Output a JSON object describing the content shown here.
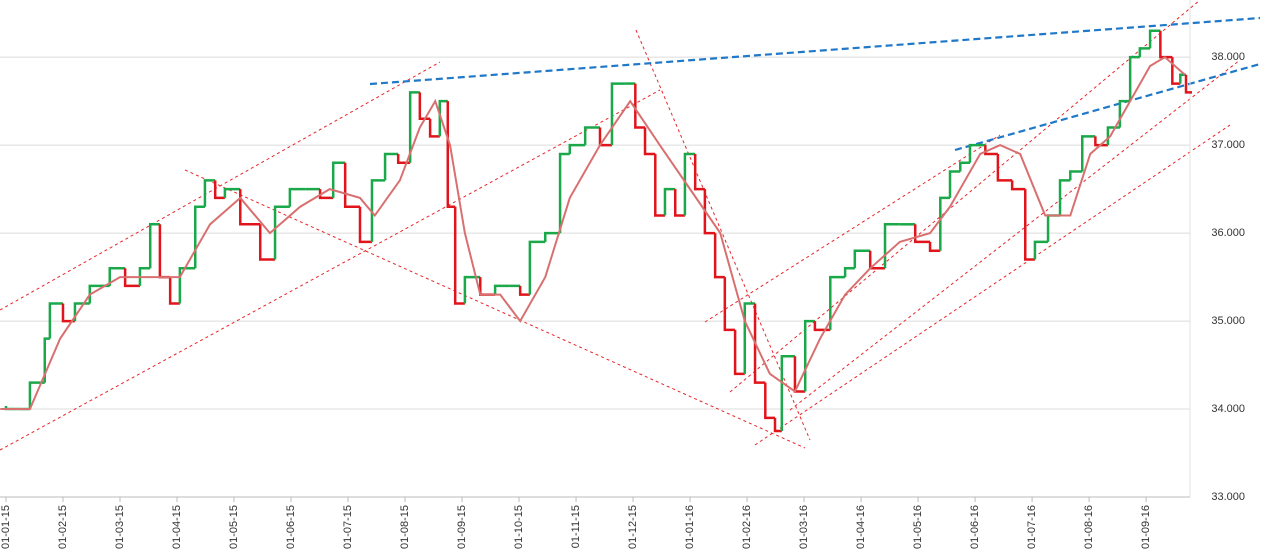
{
  "chart_data": {
    "type": "line",
    "xlim": [
      -0.105,
      20.77
    ],
    "xticks": [
      {
        "value": 0,
        "label": "01-01-15"
      },
      {
        "value": 1,
        "label": "01-02-15"
      },
      {
        "value": 2,
        "label": "01-03-15"
      },
      {
        "value": 3,
        "label": "01-04-15"
      },
      {
        "value": 4,
        "label": "01-05-15"
      },
      {
        "value": 5,
        "label": "01-06-15"
      },
      {
        "value": 6,
        "label": "01-07-15"
      },
      {
        "value": 7,
        "label": "01-08-15"
      },
      {
        "value": 8,
        "label": "01-09-15"
      },
      {
        "value": 9,
        "label": "01-10-15"
      },
      {
        "value": 10,
        "label": "01-11-15"
      },
      {
        "value": 11,
        "label": "01-12-15"
      },
      {
        "value": 12,
        "label": "01-01-16"
      },
      {
        "value": 13,
        "label": "01-02-16"
      },
      {
        "value": 14,
        "label": "01-03-16"
      },
      {
        "value": 15,
        "label": "01-04-16"
      },
      {
        "value": 16,
        "label": "01-05-16"
      },
      {
        "value": 17,
        "label": "01-06-16"
      },
      {
        "value": 18,
        "label": "01-07-16"
      },
      {
        "value": 19,
        "label": "01-08-16"
      },
      {
        "value": 20,
        "label": "01-09-16"
      }
    ],
    "ylim": [
      33,
      38.65
    ],
    "yticks": [
      {
        "value": 33,
        "label": "33.000"
      },
      {
        "value": 34,
        "label": "34.000"
      },
      {
        "value": 35,
        "label": "35.000"
      },
      {
        "value": 36,
        "label": "36.000"
      },
      {
        "value": 37,
        "label": "37.000"
      },
      {
        "value": 38,
        "label": "38.000"
      }
    ],
    "grid": true,
    "up_color": "#1aa84a",
    "down_color": "#e0141a",
    "x": [
      0,
      0.25,
      0.42,
      0.68,
      0.77,
      1,
      1.21,
      1.47,
      1.82,
      2.09,
      2.35,
      2.53,
      2.7,
      2.88,
      3.05,
      3.32,
      3.49,
      3.67,
      3.84,
      4.11,
      4.46,
      4.72,
      4.98,
      5.25,
      5.51,
      5.74,
      5.95,
      6.21,
      6.42,
      6.65,
      6.88,
      7.09,
      7.26,
      7.44,
      7.61,
      7.75,
      7.88,
      8.05,
      8.32,
      8.58,
      8.84,
      9.02,
      9.19,
      9.46,
      9.72,
      9.89,
      10.16,
      10.42,
      10.63,
      10.86,
      11.04,
      11.21,
      11.39,
      11.56,
      11.74,
      11.91,
      12.09,
      12.26,
      12.44,
      12.61,
      12.79,
      12.96,
      13.14,
      13.32,
      13.49,
      13.61,
      13.84,
      14.02,
      14.19,
      14.46,
      14.72,
      14.89,
      15.16,
      15.42,
      15.68,
      15.95,
      16.21,
      16.39,
      16.56,
      16.74,
      16.91,
      17.18,
      17.4,
      17.65,
      17.88,
      18.05,
      18.28,
      18.49,
      18.67,
      18.88,
      19.11,
      19.33,
      19.54,
      19.72,
      19.89,
      20.07,
      20.25,
      20.46,
      20.6,
      20.7
    ],
    "series": [
      {
        "color": "#1aa84a",
        "values": [
          34.0,
          34.0,
          34.3,
          34.8,
          35.2,
          35.0,
          35.2,
          35.4,
          35.6,
          35.4,
          35.6,
          36.1,
          35.5,
          35.2,
          35.6,
          36.3,
          36.6,
          36.4,
          36.5,
          36.1,
          35.7,
          36.3,
          36.5,
          36.5,
          36.4,
          36.8,
          36.3,
          35.9,
          36.6,
          36.9,
          36.8,
          37.6,
          37.3,
          37.1,
          37.5,
          36.3,
          35.2,
          35.5,
          35.3,
          35.4,
          35.4,
          35.3,
          35.9,
          36.0,
          36.9,
          37.0,
          37.2,
          37.0,
          37.7,
          37.7,
          37.2,
          36.9,
          36.2,
          36.5,
          36.2,
          36.9,
          36.5,
          36.0,
          35.5,
          34.9,
          34.4,
          35.2,
          34.3,
          33.9,
          33.75,
          34.6,
          34.2,
          35.0,
          34.9,
          35.5,
          35.6,
          35.8,
          35.6,
          36.1,
          36.1,
          35.9,
          35.8,
          36.4,
          36.7,
          36.8,
          37.0,
          36.9,
          36.6,
          36.5,
          35.7,
          35.9,
          36.2,
          36.6,
          36.7,
          37.1,
          37.0,
          37.2,
          37.5,
          38.0,
          38.1,
          38.3,
          38.0,
          37.7,
          37.8,
          37.6
        ]
      },
      {
        "color": "#d87070",
        "x": [
          -0.1,
          0.42,
          0.95,
          1.47,
          2,
          2.53,
          3.05,
          3.58,
          4.11,
          4.63,
          5.16,
          5.68,
          6.21,
          6.47,
          6.91,
          7.26,
          7.53,
          7.79,
          8.05,
          8.32,
          8.67,
          9.02,
          9.46,
          9.89,
          10.42,
          10.95,
          11.47,
          12,
          12.53,
          12.96,
          13.4,
          13.84,
          14.28,
          14.72,
          15.16,
          15.68,
          16.21,
          16.56,
          17.09,
          17.44,
          17.79,
          18.23,
          18.67,
          19.02,
          19.37,
          19.72,
          20.07,
          20.33,
          20.68
        ],
        "values": [
          34.0,
          34.0,
          34.8,
          35.3,
          35.5,
          35.5,
          35.5,
          36.1,
          36.4,
          36.0,
          36.3,
          36.5,
          36.4,
          36.2,
          36.6,
          37.2,
          37.5,
          37.0,
          36.0,
          35.3,
          35.3,
          35.0,
          35.5,
          36.4,
          37.0,
          37.5,
          37.0,
          36.5,
          36.0,
          35.0,
          34.4,
          34.2,
          34.8,
          35.3,
          35.6,
          35.9,
          36.0,
          36.3,
          36.9,
          37.0,
          36.9,
          36.2,
          36.2,
          36.9,
          37.1,
          37.5,
          37.9,
          38.0,
          37.8
        ]
      }
    ]
  }
}
